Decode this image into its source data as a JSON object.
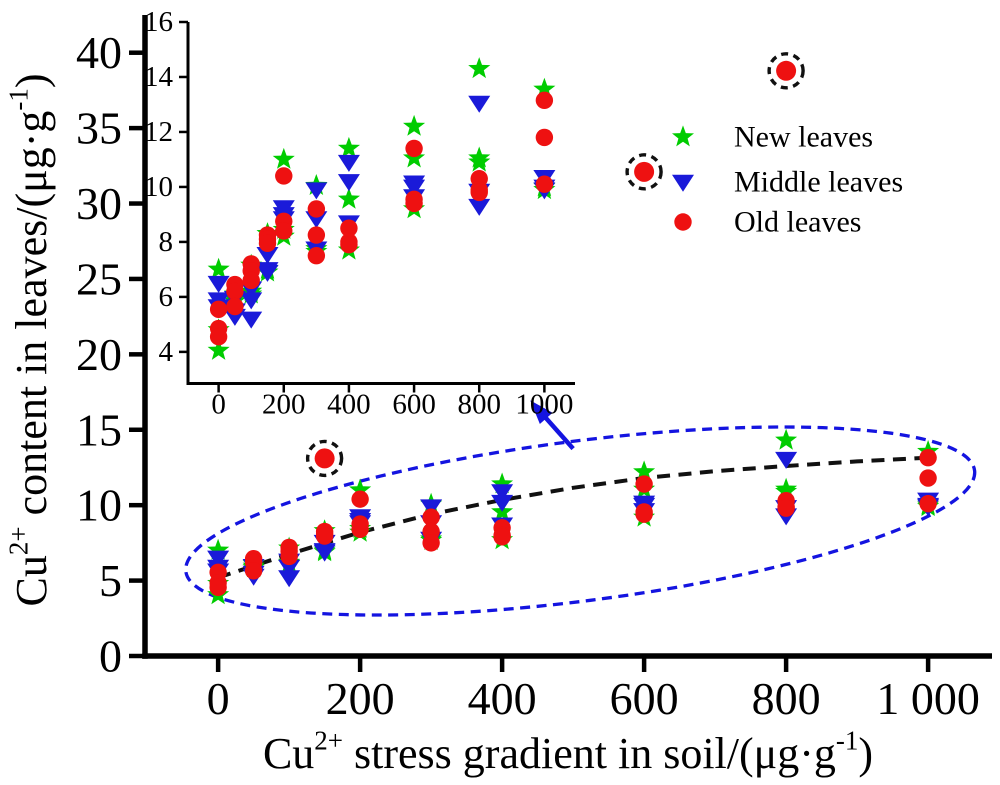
{
  "figure": {
    "background": "#ffffff",
    "description": "Scatter plot of Cu2+ content in leaves versus Cu2+ stress gradient in soil, with magnified inset of clustered points, dashed ellipse around cluster, dashed trend curve, and dash-circled outlier points"
  },
  "chart_data": {
    "type": "scatter",
    "title": "",
    "xlabel": "Cu2+ stress gradient in soil/(μg·g-1)",
    "ylabel": "Cu2+ content in leaves/(μg·g-1)",
    "xlabel_parts": [
      [
        "Cu",
        0
      ],
      [
        "2+",
        1
      ],
      [
        " stress gradient in soil/(μg·g",
        0
      ],
      [
        "-1",
        1
      ],
      [
        ")",
        0
      ]
    ],
    "ylabel_parts": [
      [
        "Cu",
        0
      ],
      [
        "2+",
        1
      ],
      [
        " content in leaves/(μg·g",
        0
      ],
      [
        "-1",
        1
      ],
      [
        ")",
        0
      ]
    ],
    "legend_position": "upper-right",
    "grid": false,
    "main_axes": {
      "xlim": [
        -103,
        1090
      ],
      "ylim": [
        0,
        42.5
      ],
      "xticks": [
        0,
        200,
        400,
        600,
        800,
        1000
      ],
      "xtick_labels": [
        "0",
        "200",
        "400",
        "600",
        "800",
        "1 000"
      ],
      "yticks": [
        0,
        5,
        10,
        15,
        20,
        25,
        30,
        35,
        40
      ],
      "ytick_labels": [
        "0",
        "5",
        "10",
        "15",
        "20",
        "25",
        "30",
        "35",
        "40"
      ]
    },
    "inset_axes": {
      "note": "magnified view of the clustered data, linked by blue arrow",
      "xlim": [
        -94,
        1094
      ],
      "ylim": [
        2.85,
        16
      ],
      "xticks": [
        0,
        200,
        400,
        600,
        800,
        1000
      ],
      "xtick_labels": [
        "0",
        "200",
        "400",
        "600",
        "800",
        "1000"
      ],
      "yticks": [
        4,
        6,
        8,
        10,
        12,
        14,
        16
      ],
      "ytick_labels": [
        "4",
        "6",
        "8",
        "10",
        "12",
        "14",
        "16"
      ]
    },
    "series": [
      {
        "name": "New leaves",
        "marker": "star",
        "color": "#00cc00",
        "points": [
          [
            0,
            7.0
          ],
          [
            0,
            4.8
          ],
          [
            0,
            4.05
          ],
          [
            50,
            6.1
          ],
          [
            50,
            5.95
          ],
          [
            50,
            5.85
          ],
          [
            100,
            7.15
          ],
          [
            100,
            6.2
          ],
          [
            100,
            6.1
          ],
          [
            150,
            8.3
          ],
          [
            150,
            7.0
          ],
          [
            150,
            6.9
          ],
          [
            200,
            11.0
          ],
          [
            200,
            8.45
          ],
          [
            200,
            8.2
          ],
          [
            300,
            10.05
          ],
          [
            300,
            7.75
          ],
          [
            300,
            7.65
          ],
          [
            400,
            11.4
          ],
          [
            400,
            9.55
          ],
          [
            400,
            7.7
          ],
          [
            600,
            12.2
          ],
          [
            600,
            11.05
          ],
          [
            600,
            9.2
          ],
          [
            800,
            14.3
          ],
          [
            800,
            11.05
          ],
          [
            800,
            10.9
          ],
          [
            1000,
            13.55
          ],
          [
            1000,
            10.0
          ],
          [
            1000,
            9.9
          ]
        ]
      },
      {
        "name": "Middle leaves",
        "marker": "triangle-down",
        "color": "#1a1ad9",
        "points": [
          [
            0,
            6.5
          ],
          [
            0,
            5.9
          ],
          [
            0,
            5.65
          ],
          [
            50,
            5.95
          ],
          [
            50,
            5.5
          ],
          [
            50,
            5.3
          ],
          [
            100,
            6.3
          ],
          [
            100,
            5.9
          ],
          [
            100,
            5.2
          ],
          [
            150,
            7.55
          ],
          [
            150,
            7.0
          ],
          [
            150,
            6.9
          ],
          [
            200,
            9.25
          ],
          [
            200,
            9.0
          ],
          [
            200,
            8.85
          ],
          [
            300,
            9.9
          ],
          [
            300,
            8.85
          ],
          [
            300,
            7.75
          ],
          [
            400,
            10.9
          ],
          [
            400,
            10.2
          ],
          [
            400,
            8.7
          ],
          [
            600,
            10.15
          ],
          [
            600,
            10.0
          ],
          [
            600,
            9.65
          ],
          [
            800,
            13.05
          ],
          [
            800,
            9.85
          ],
          [
            800,
            9.3
          ],
          [
            1000,
            10.35
          ],
          [
            1000,
            10.0
          ],
          [
            1000,
            9.9
          ]
        ]
      },
      {
        "name": "Old leaves",
        "marker": "circle",
        "color": "#ee1111",
        "points": [
          [
            0,
            5.55
          ],
          [
            0,
            4.85
          ],
          [
            0,
            4.55
          ],
          [
            50,
            6.45
          ],
          [
            50,
            6.2
          ],
          [
            50,
            5.65
          ],
          [
            100,
            7.2
          ],
          [
            100,
            6.95
          ],
          [
            100,
            6.6
          ],
          [
            150,
            8.25
          ],
          [
            150,
            8.1
          ],
          [
            150,
            7.95
          ],
          [
            200,
            10.4
          ],
          [
            200,
            8.75
          ],
          [
            200,
            8.4
          ],
          [
            300,
            9.2
          ],
          [
            300,
            8.25
          ],
          [
            300,
            7.5
          ],
          [
            400,
            8.5
          ],
          [
            400,
            8.0
          ],
          [
            400,
            7.9
          ],
          [
            600,
            11.4
          ],
          [
            600,
            9.55
          ],
          [
            600,
            9.4
          ],
          [
            800,
            10.3
          ],
          [
            800,
            9.9
          ],
          [
            800,
            9.8
          ],
          [
            1000,
            13.15
          ],
          [
            1000,
            11.8
          ],
          [
            1000,
            10.1
          ]
        ]
      }
    ],
    "outliers": {
      "series": "Old leaves",
      "marker": "circle",
      "color": "#ee1111",
      "annotation": "dashed-black-circle",
      "points": [
        [
          150,
          13.1
        ],
        [
          600,
          32.1
        ],
        [
          800,
          38.8
        ]
      ]
    },
    "trend": {
      "color": "#111111",
      "style": "dashed",
      "points": [
        [
          0,
          5.2
        ],
        [
          100,
          6.75
        ],
        [
          200,
          8.2
        ],
        [
          300,
          9.4
        ],
        [
          400,
          10.35
        ],
        [
          500,
          11.15
        ],
        [
          600,
          11.8
        ],
        [
          700,
          12.25
        ],
        [
          800,
          12.6
        ],
        [
          900,
          12.9
        ],
        [
          1000,
          13.15
        ]
      ]
    },
    "ellipse": {
      "color": "#1414e0",
      "style": "dashed",
      "center": [
        510,
        8.95
      ],
      "rx_data": 560,
      "ry_data": 5.3,
      "rotation_deg": -7.3
    },
    "arrow": {
      "color": "#1414e0",
      "from": [
        500,
        13.75
      ],
      "to": [
        449,
        16.45
      ]
    },
    "legend": {
      "items": [
        "New leaves",
        "Middle leaves",
        "Old leaves"
      ]
    },
    "colors": {
      "new_leaves": "#00cc00",
      "middle_leaves": "#1a1ad9",
      "old_leaves": "#ee1111",
      "ellipse_blue": "#1414e0",
      "annotation_black": "#111111"
    }
  }
}
